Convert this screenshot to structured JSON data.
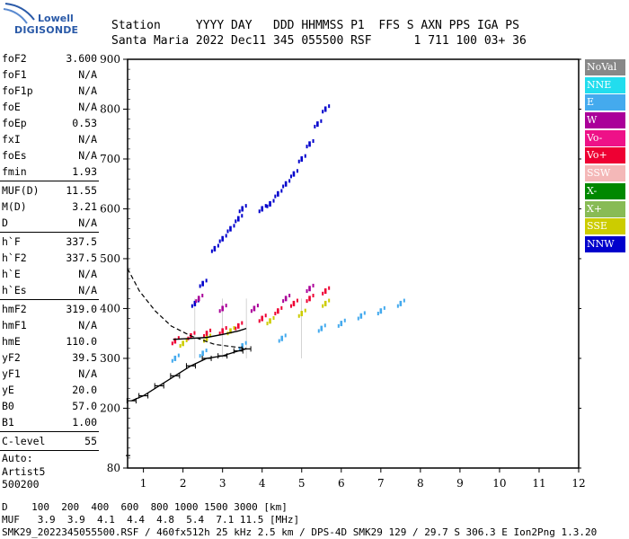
{
  "logo": {
    "line1": "Lowell",
    "line2": "DIGISONDE"
  },
  "header": {
    "line1": "Station     YYYY DAY   DDD HHMMSS P1  FFS S AXN PPS IGA PS",
    "line2": "Santa Maria 2022 Dec11 345 055500 RSF      1 711 100 03+ 36"
  },
  "params": {
    "group1": [
      {
        "label": "foF2",
        "value": "3.600"
      },
      {
        "label": "foF1",
        "value": "N/A"
      },
      {
        "label": "foF1p",
        "value": "N/A"
      },
      {
        "label": "foE",
        "value": "N/A"
      },
      {
        "label": "foEp",
        "value": "0.53"
      },
      {
        "label": "fxI",
        "value": "N/A"
      },
      {
        "label": "foEs",
        "value": "N/A"
      },
      {
        "label": "fmin",
        "value": "1.93"
      }
    ],
    "group2": [
      {
        "label": "MUF(D)",
        "value": "11.55"
      },
      {
        "label": "M(D)",
        "value": "3.21"
      },
      {
        "label": "D",
        "value": "N/A"
      }
    ],
    "group3": [
      {
        "label": "h`F",
        "value": "337.5"
      },
      {
        "label": "h`F2",
        "value": "337.5"
      },
      {
        "label": "h`E",
        "value": "N/A"
      },
      {
        "label": "h`Es",
        "value": "N/A"
      }
    ],
    "group4": [
      {
        "label": "hmF2",
        "value": "319.0"
      },
      {
        "label": "hmF1",
        "value": "N/A"
      },
      {
        "label": "hmE",
        "value": "110.0"
      },
      {
        "label": "yF2",
        "value": "39.5"
      },
      {
        "label": "yF1",
        "value": "N/A"
      },
      {
        "label": "yE",
        "value": "20.0"
      },
      {
        "label": "B0",
        "value": "57.0"
      },
      {
        "label": "B1",
        "value": "1.00"
      }
    ],
    "group5": [
      {
        "label": "C-level",
        "value": "55"
      }
    ],
    "auto": [
      "Auto:",
      "Artist5",
      "500200"
    ]
  },
  "legend": [
    {
      "label": "NoVal",
      "color": "#888888"
    },
    {
      "label": "NNE",
      "color": "#22ddee"
    },
    {
      "label": "E",
      "color": "#44aaee"
    },
    {
      "label": "W",
      "color": "#aa0099"
    },
    {
      "label": "Vo-",
      "color": "#ee1188"
    },
    {
      "label": "Vo+",
      "color": "#ee0033"
    },
    {
      "label": "SSW",
      "color": "#f4b8b8"
    },
    {
      "label": "X-",
      "color": "#008800"
    },
    {
      "label": "X+",
      "color": "#88bb55"
    },
    {
      "label": "SSE",
      "color": "#cccc00"
    },
    {
      "label": "NNW",
      "color": "#0000cc"
    }
  ],
  "footer": {
    "line1": "D    100  200  400  600  800 1000 1500 3000 [km]",
    "line2": "MUF   3.9  3.9  4.1  4.4  4.8  5.4  7.1 11.5 [MHz]",
    "line3": "SMK29_2022345055500.RSF / 460fx512h 25 kHz 2.5 km / DPS-4D SMK29 129 / 29.7 S 306.3 E Ion2Png 1.3.20"
  },
  "chart_data": {
    "type": "scatter",
    "title": "",
    "xlabel": "",
    "ylabel": "",
    "xlim": [
      0.6,
      12
    ],
    "ylim": [
      80,
      900
    ],
    "xticks": [
      1,
      2,
      3,
      4,
      5,
      6,
      7,
      8,
      9,
      10,
      11,
      12
    ],
    "yticks": [
      80,
      200,
      300,
      400,
      500,
      600,
      700,
      800,
      900
    ],
    "grid": false,
    "legend_position": "right",
    "series": [
      {
        "name": "NNW",
        "color": "#0000cc",
        "points": [
          [
            2.3,
            410
          ],
          [
            2.5,
            450
          ],
          [
            2.8,
            520
          ],
          [
            3.0,
            540
          ],
          [
            3.2,
            560
          ],
          [
            3.4,
            580
          ],
          [
            3.5,
            600
          ],
          [
            4.0,
            600
          ],
          [
            4.2,
            610
          ],
          [
            4.4,
            630
          ],
          [
            4.6,
            650
          ],
          [
            4.8,
            670
          ],
          [
            5.0,
            700
          ],
          [
            5.2,
            730
          ],
          [
            5.4,
            770
          ],
          [
            5.6,
            800
          ]
        ]
      },
      {
        "name": "E",
        "color": "#44aaee",
        "points": [
          [
            1.8,
            300
          ],
          [
            2.5,
            310
          ],
          [
            3.5,
            325
          ],
          [
            4.5,
            340
          ],
          [
            5.5,
            360
          ],
          [
            6.0,
            370
          ],
          [
            6.5,
            385
          ],
          [
            7.0,
            395
          ],
          [
            7.5,
            410
          ]
        ]
      },
      {
        "name": "Vo+",
        "color": "#ee0033",
        "points": [
          [
            1.8,
            335
          ],
          [
            2.2,
            345
          ],
          [
            2.6,
            350
          ],
          [
            3.0,
            355
          ],
          [
            3.4,
            365
          ],
          [
            4.0,
            380
          ],
          [
            4.4,
            395
          ],
          [
            4.8,
            410
          ],
          [
            5.2,
            420
          ],
          [
            5.6,
            435
          ]
        ]
      },
      {
        "name": "SSE",
        "color": "#cccc00",
        "points": [
          [
            2.0,
            330
          ],
          [
            2.6,
            340
          ],
          [
            3.2,
            355
          ],
          [
            4.2,
            375
          ],
          [
            5.0,
            390
          ],
          [
            5.6,
            410
          ]
        ]
      },
      {
        "name": "W",
        "color": "#aa0099",
        "points": [
          [
            2.4,
            420
          ],
          [
            3.0,
            400
          ],
          [
            3.8,
            400
          ],
          [
            4.6,
            420
          ],
          [
            5.2,
            440
          ]
        ]
      }
    ],
    "o_trace": [
      [
        0.7,
        215
      ],
      [
        1.0,
        225
      ],
      [
        1.4,
        245
      ],
      [
        1.8,
        265
      ],
      [
        2.2,
        285
      ],
      [
        2.6,
        300
      ],
      [
        3.0,
        305
      ],
      [
        3.4,
        315
      ],
      [
        3.6,
        319
      ]
    ],
    "virtual_trace": [
      [
        1.75,
        338
      ],
      [
        2.2,
        340
      ],
      [
        2.6,
        342
      ],
      [
        3.0,
        348
      ],
      [
        3.4,
        355
      ],
      [
        3.6,
        360
      ]
    ],
    "dashed_profile": [
      [
        0.6,
        480
      ],
      [
        0.9,
        435
      ],
      [
        1.3,
        395
      ],
      [
        1.7,
        365
      ],
      [
        2.2,
        345
      ],
      [
        2.8,
        328
      ],
      [
        3.6,
        320
      ]
    ]
  }
}
